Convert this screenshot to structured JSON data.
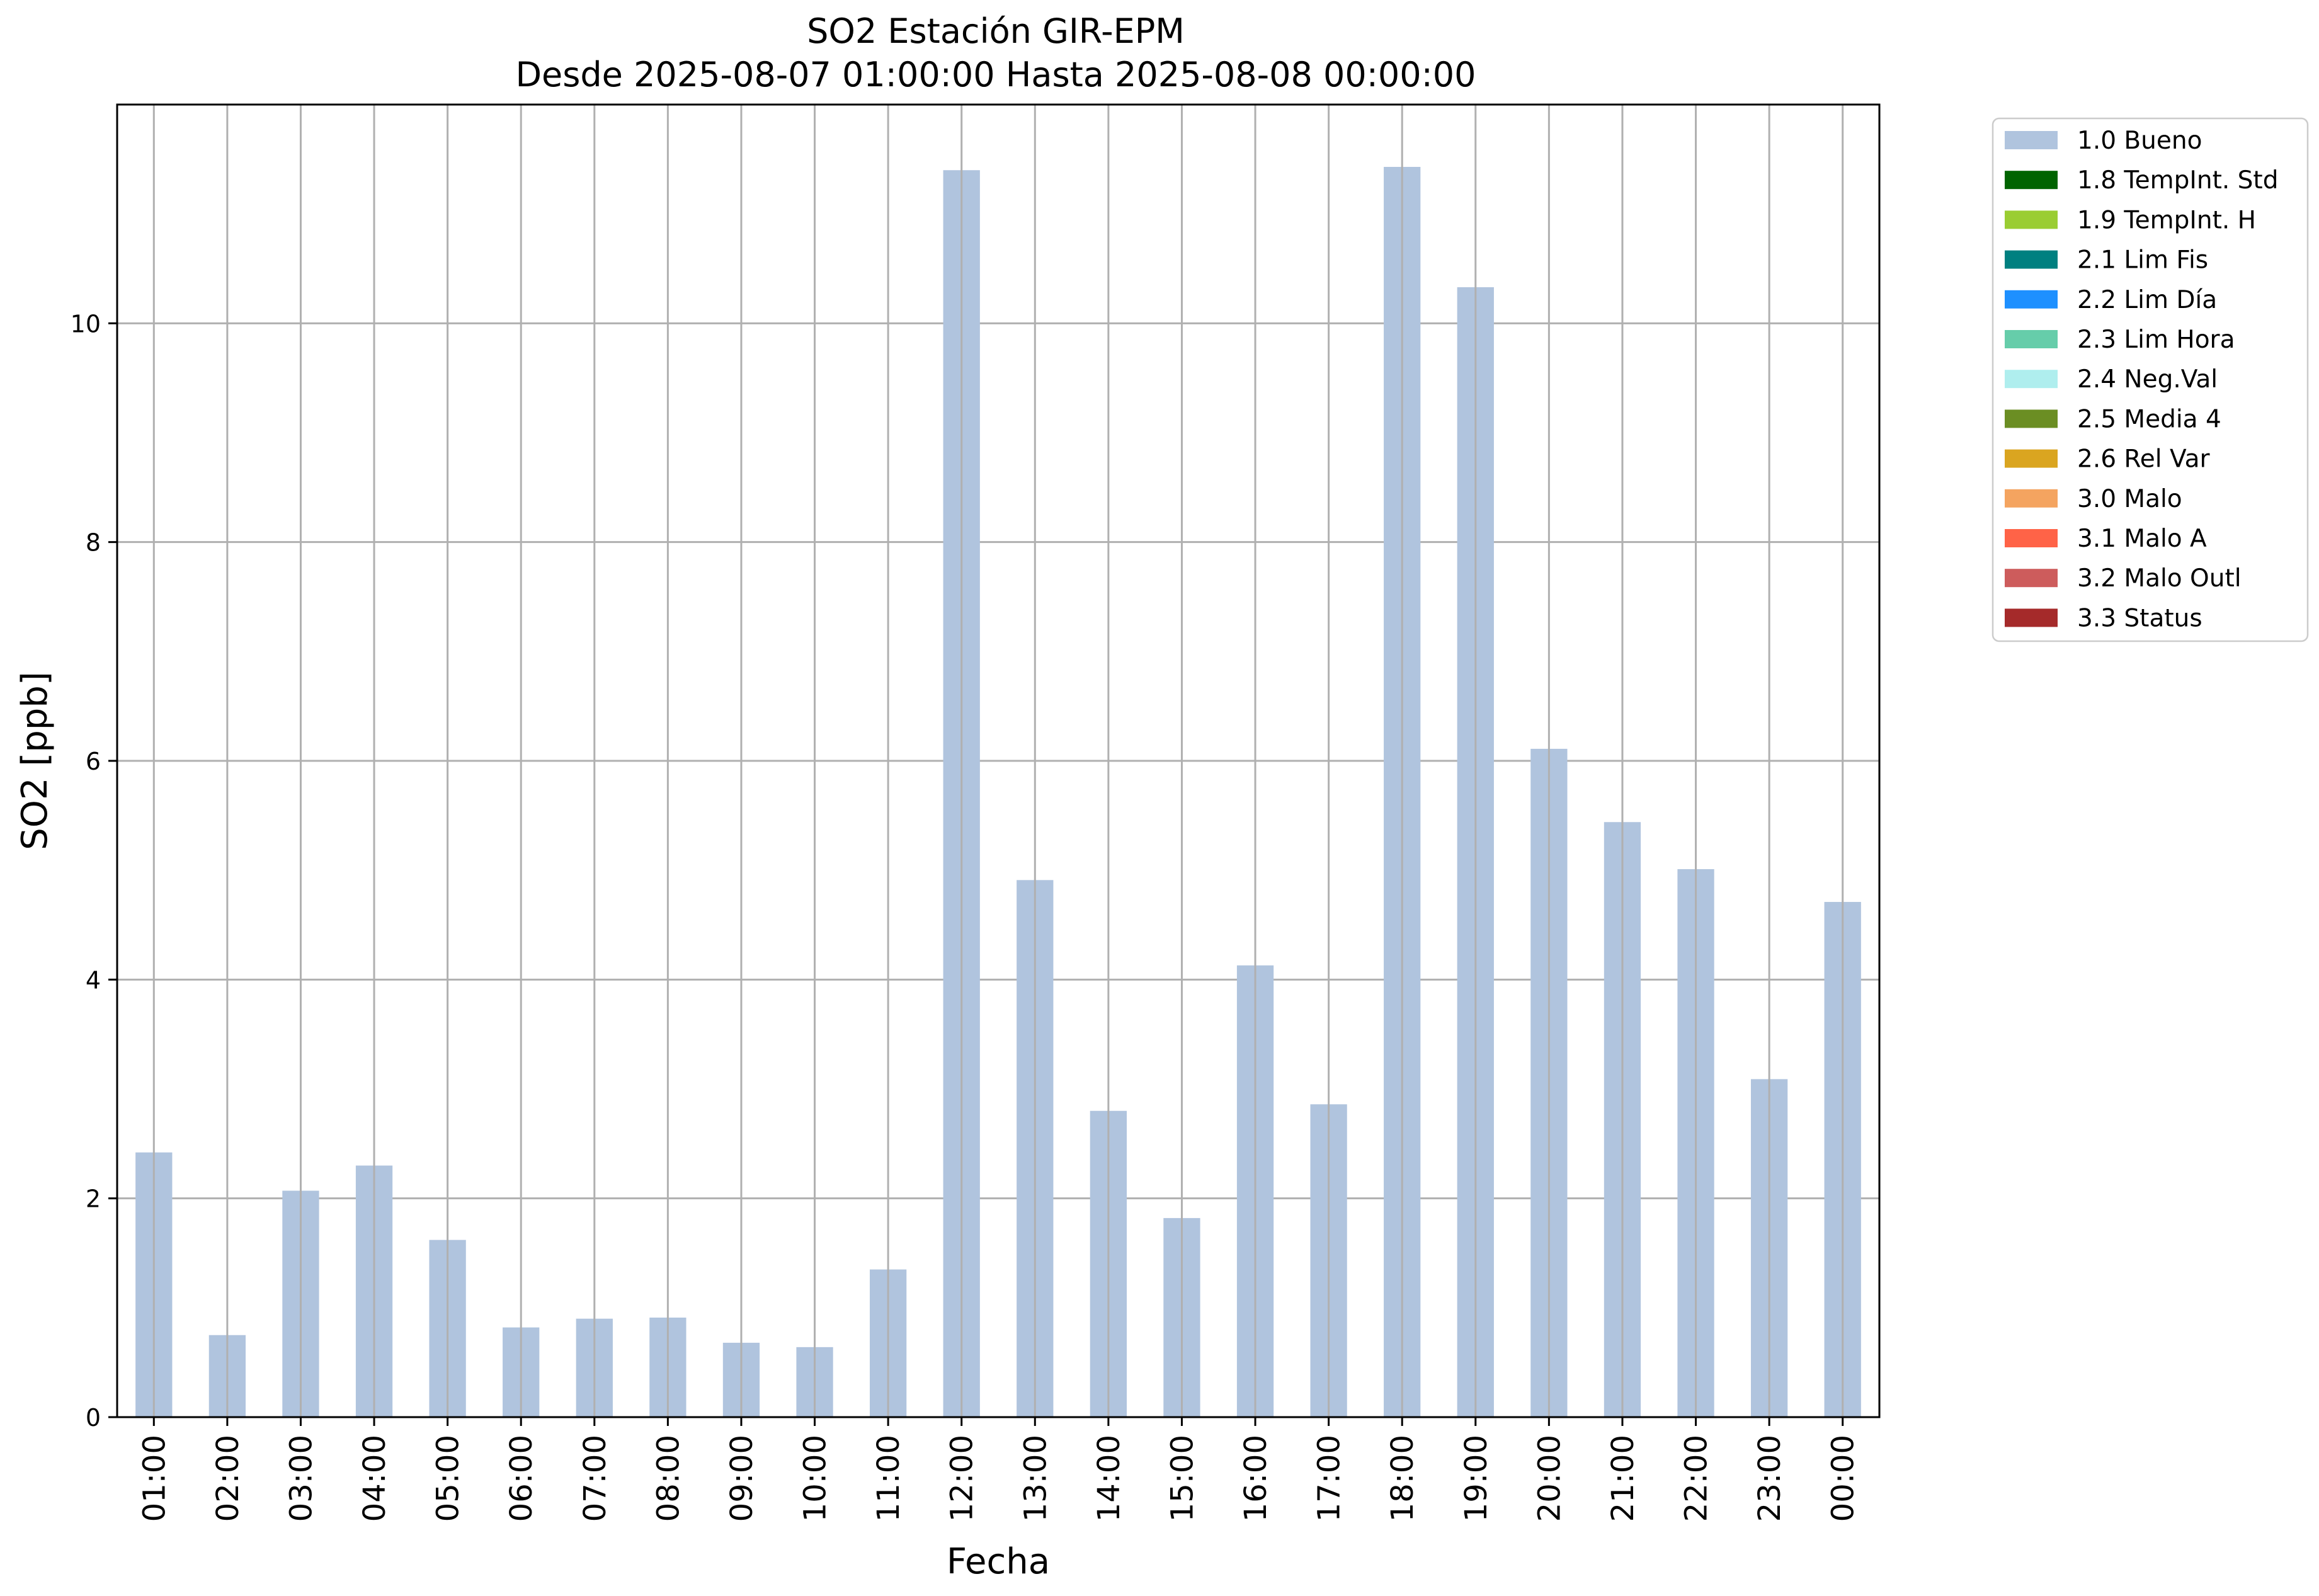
{
  "chart_data": {
    "type": "bar",
    "title_line1": "SO2 Estación GIR-EPM",
    "title_line2": "Desde 2025-08-07 01:00:00 Hasta 2025-08-08 00:00:00",
    "xlabel": "Fecha",
    "ylabel": "SO2 [ppb]",
    "ylim": [
      0,
      12
    ],
    "yticks": [
      0,
      2,
      4,
      6,
      8,
      10
    ],
    "grid": true,
    "legend_position": "outside-top-right",
    "categories": [
      "01:00",
      "02:00",
      "03:00",
      "04:00",
      "05:00",
      "06:00",
      "07:00",
      "08:00",
      "09:00",
      "10:00",
      "11:00",
      "12:00",
      "13:00",
      "14:00",
      "15:00",
      "16:00",
      "17:00",
      "18:00",
      "19:00",
      "20:00",
      "21:00",
      "22:00",
      "23:00",
      "00:00"
    ],
    "series": [
      {
        "name": "1.0 Bueno",
        "color": "#b0c4de",
        "values": [
          2.42,
          0.75,
          2.07,
          2.3,
          1.62,
          0.82,
          0.9,
          0.91,
          0.68,
          0.64,
          1.35,
          11.4,
          4.91,
          2.8,
          1.82,
          4.13,
          2.86,
          11.43,
          10.33,
          6.11,
          5.44,
          5.01,
          3.09,
          4.71
        ]
      }
    ],
    "legend": [
      {
        "label": "1.0 Bueno",
        "color": "#b0c4de"
      },
      {
        "label": "1.8 TempInt. Std",
        "color": "#006400"
      },
      {
        "label": "1.9 TempInt. H",
        "color": "#9acd32"
      },
      {
        "label": "2.1 Lim Fis",
        "color": "#008080"
      },
      {
        "label": "2.2 Lim Día",
        "color": "#1e90ff"
      },
      {
        "label": "2.3 Lim Hora",
        "color": "#66cdaa"
      },
      {
        "label": "2.4 Neg.Val",
        "color": "#afeeee"
      },
      {
        "label": "2.5 Media 4",
        "color": "#6b8e23"
      },
      {
        "label": "2.6 Rel Var",
        "color": "#daa520"
      },
      {
        "label": "3.0 Malo",
        "color": "#f4a460"
      },
      {
        "label": "3.1 Malo A",
        "color": "#ff6347"
      },
      {
        "label": "3.2 Malo Outl",
        "color": "#cd5c5c"
      },
      {
        "label": "3.3 Status",
        "color": "#a52a2a"
      }
    ]
  }
}
